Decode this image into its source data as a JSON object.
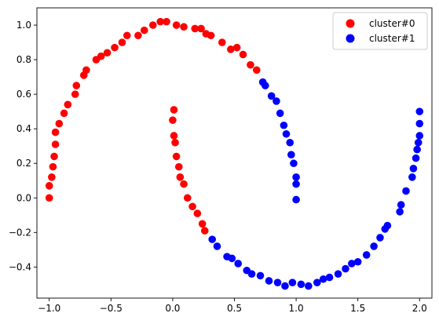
{
  "chart_data": {
    "type": "scatter",
    "title": "",
    "xlabel": "",
    "ylabel": "",
    "xlim": [
      -1.1,
      2.1
    ],
    "ylim": [
      -0.58,
      1.1
    ],
    "grid": false,
    "legend_position": "top-right",
    "x_ticks": [
      -1.0,
      -0.5,
      0.0,
      0.5,
      1.0,
      1.5,
      2.0
    ],
    "x_tick_labels": [
      "−1.0",
      "−0.5",
      "0.0",
      "0.5",
      "1.0",
      "1.5",
      "2.0"
    ],
    "y_ticks": [
      -0.4,
      -0.2,
      0.0,
      0.2,
      0.4,
      0.6,
      0.8,
      1.0
    ],
    "y_tick_labels": [
      "−0.4",
      "−0.2",
      "0.0",
      "0.2",
      "0.4",
      "0.6",
      "0.8",
      "1.0"
    ],
    "series": [
      {
        "name": "cluster#0",
        "color": "#ff0000",
        "points": [
          [
            -1.0,
            0.0
          ],
          [
            -1.0,
            0.07
          ],
          [
            -0.98,
            0.12
          ],
          [
            -0.97,
            0.18
          ],
          [
            -0.96,
            0.24
          ],
          [
            -0.95,
            0.31
          ],
          [
            -0.95,
            0.38
          ],
          [
            -0.92,
            0.43
          ],
          [
            -0.88,
            0.49
          ],
          [
            -0.85,
            0.54
          ],
          [
            -0.79,
            0.6
          ],
          [
            -0.78,
            0.65
          ],
          [
            -0.72,
            0.71
          ],
          [
            -0.7,
            0.74
          ],
          [
            -0.62,
            0.8
          ],
          [
            -0.58,
            0.82
          ],
          [
            -0.53,
            0.84
          ],
          [
            -0.47,
            0.87
          ],
          [
            -0.41,
            0.9
          ],
          [
            -0.37,
            0.94
          ],
          [
            -0.28,
            0.94
          ],
          [
            -0.23,
            0.97
          ],
          [
            -0.16,
            1.0
          ],
          [
            -0.1,
            1.02
          ],
          [
            -0.05,
            1.02
          ],
          [
            0.03,
            1.0
          ],
          [
            0.09,
            0.99
          ],
          [
            0.18,
            0.98
          ],
          [
            0.23,
            0.98
          ],
          [
            0.27,
            0.95
          ],
          [
            0.31,
            0.94
          ],
          [
            0.4,
            0.9
          ],
          [
            0.47,
            0.86
          ],
          [
            0.52,
            0.87
          ],
          [
            0.57,
            0.83
          ],
          [
            0.63,
            0.77
          ],
          [
            0.68,
            0.74
          ],
          [
            0.01,
            0.51
          ],
          [
            0.0,
            0.45
          ],
          [
            0.01,
            0.36
          ],
          [
            0.02,
            0.32
          ],
          [
            0.03,
            0.24
          ],
          [
            0.05,
            0.18
          ],
          [
            0.06,
            0.12
          ],
          [
            0.09,
            0.08
          ],
          [
            0.12,
            0.0
          ],
          [
            0.16,
            -0.05
          ],
          [
            0.2,
            -0.09
          ],
          [
            0.24,
            -0.15
          ],
          [
            0.26,
            -0.19
          ]
        ]
      },
      {
        "name": "cluster#1",
        "color": "#0000ff",
        "points": [
          [
            0.73,
            0.67
          ],
          [
            0.75,
            0.65
          ],
          [
            0.8,
            0.59
          ],
          [
            0.84,
            0.56
          ],
          [
            0.87,
            0.49
          ],
          [
            0.9,
            0.42
          ],
          [
            0.92,
            0.37
          ],
          [
            0.95,
            0.32
          ],
          [
            0.96,
            0.25
          ],
          [
            0.98,
            0.2
          ],
          [
            1.0,
            0.12
          ],
          [
            1.0,
            0.08
          ],
          [
            1.0,
            -0.01
          ],
          [
            0.32,
            -0.24
          ],
          [
            0.36,
            -0.28
          ],
          [
            0.44,
            -0.34
          ],
          [
            0.48,
            -0.35
          ],
          [
            0.53,
            -0.38
          ],
          [
            0.6,
            -0.42
          ],
          [
            0.64,
            -0.44
          ],
          [
            0.71,
            -0.45
          ],
          [
            0.78,
            -0.48
          ],
          [
            0.85,
            -0.49
          ],
          [
            0.91,
            -0.51
          ],
          [
            0.97,
            -0.49
          ],
          [
            1.04,
            -0.5
          ],
          [
            1.1,
            -0.51
          ],
          [
            1.17,
            -0.49
          ],
          [
            1.22,
            -0.47
          ],
          [
            1.27,
            -0.46
          ],
          [
            1.34,
            -0.44
          ],
          [
            1.4,
            -0.41
          ],
          [
            1.45,
            -0.38
          ],
          [
            1.5,
            -0.37
          ],
          [
            1.57,
            -0.33
          ],
          [
            1.63,
            -0.28
          ],
          [
            1.68,
            -0.23
          ],
          [
            1.72,
            -0.18
          ],
          [
            1.74,
            -0.16
          ],
          [
            1.84,
            -0.08
          ],
          [
            1.85,
            -0.04
          ],
          [
            1.89,
            0.04
          ],
          [
            1.94,
            0.12
          ],
          [
            1.95,
            0.17
          ],
          [
            1.97,
            0.23
          ],
          [
            1.98,
            0.28
          ],
          [
            1.99,
            0.32
          ],
          [
            2.0,
            0.36
          ],
          [
            2.0,
            0.43
          ],
          [
            2.0,
            0.5
          ]
        ]
      }
    ]
  }
}
